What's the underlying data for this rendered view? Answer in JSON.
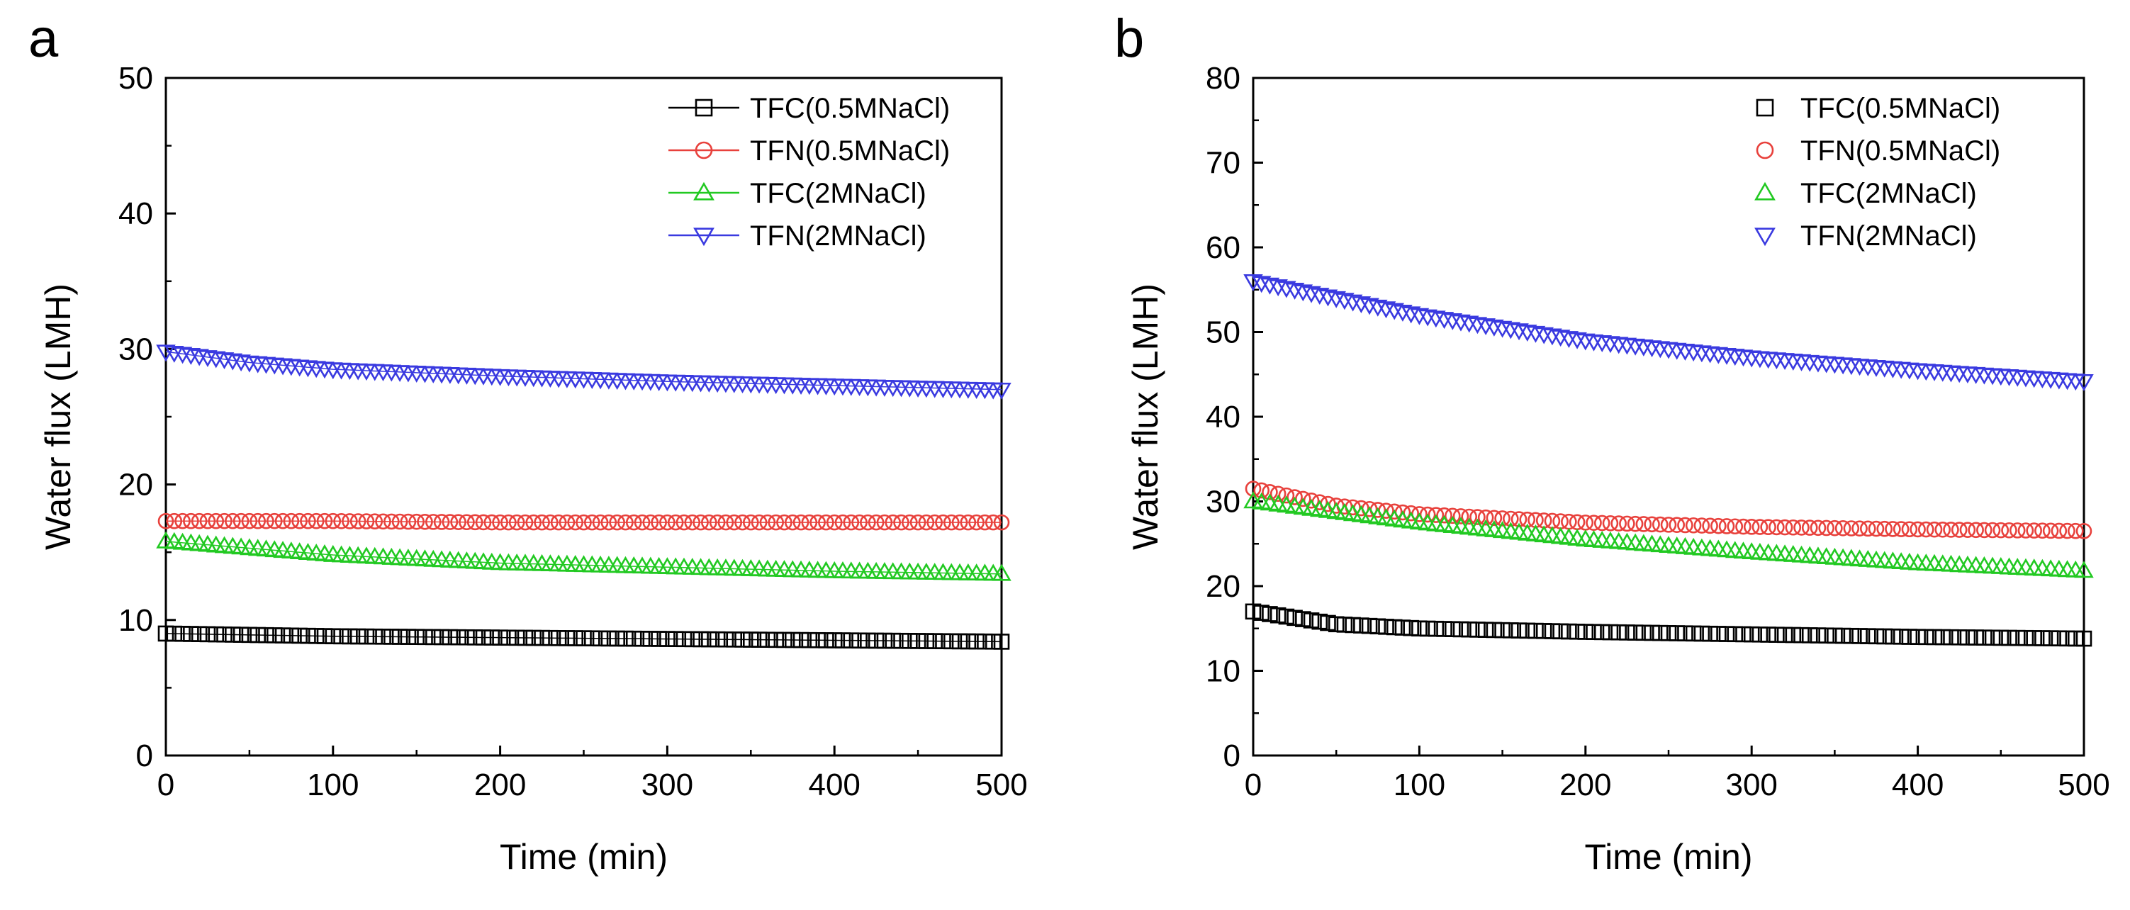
{
  "figure": {
    "panels": [
      "a",
      "b"
    ]
  },
  "chart_data": [
    {
      "panel": "a",
      "type": "scatter",
      "xlabel": "Time (min)",
      "ylabel": "Water flux (LMH)",
      "xlim": [
        0,
        500
      ],
      "ylim": [
        0,
        50
      ],
      "xticks": [
        0,
        100,
        200,
        300,
        400,
        500
      ],
      "yticks": [
        0,
        10,
        20,
        30,
        40,
        50
      ],
      "legend_position": "top-right",
      "legend_lines": true,
      "marker_step": 5,
      "series": [
        {
          "name": "TFC(0.5MNaCl)",
          "marker": "square",
          "color": "#000000",
          "x": [
            0,
            100,
            200,
            300,
            400,
            500
          ],
          "y": [
            9.0,
            8.8,
            8.7,
            8.6,
            8.5,
            8.4
          ]
        },
        {
          "name": "TFN(0.5MNaCl)",
          "marker": "circle",
          "color": "#e8413c",
          "x": [
            0,
            100,
            200,
            300,
            400,
            500
          ],
          "y": [
            17.3,
            17.3,
            17.2,
            17.2,
            17.2,
            17.2
          ]
        },
        {
          "name": "TFC(2MNaCl)",
          "marker": "triangle-up",
          "color": "#22c922",
          "x": [
            0,
            100,
            200,
            300,
            400,
            500
          ],
          "y": [
            15.8,
            14.8,
            14.2,
            13.9,
            13.6,
            13.4
          ]
        },
        {
          "name": "TFN(2MNaCl)",
          "marker": "triangle-down",
          "color": "#3a3ae0",
          "x": [
            0,
            50,
            100,
            200,
            300,
            400,
            500
          ],
          "y": [
            29.8,
            29.0,
            28.5,
            28.0,
            27.6,
            27.3,
            27.0
          ]
        }
      ]
    },
    {
      "panel": "b",
      "type": "scatter",
      "xlabel": "Time (min)",
      "ylabel": "Water flux (LMH)",
      "xlim": [
        0,
        500
      ],
      "ylim": [
        0,
        80
      ],
      "xticks": [
        0,
        100,
        200,
        300,
        400,
        500
      ],
      "yticks": [
        0,
        10,
        20,
        30,
        40,
        50,
        60,
        70,
        80
      ],
      "legend_position": "top-right",
      "legend_lines": false,
      "marker_step": 5,
      "series": [
        {
          "name": "TFC(0.5MNaCl)",
          "marker": "square",
          "color": "#000000",
          "x": [
            0,
            50,
            100,
            200,
            300,
            400,
            500
          ],
          "y": [
            17.0,
            15.5,
            15.0,
            14.6,
            14.3,
            14.0,
            13.8
          ]
        },
        {
          "name": "TFN(0.5MNaCl)",
          "marker": "circle",
          "color": "#e8413c",
          "x": [
            0,
            50,
            100,
            200,
            300,
            400,
            500
          ],
          "y": [
            31.5,
            29.5,
            28.5,
            27.5,
            27.0,
            26.7,
            26.5
          ]
        },
        {
          "name": "TFC(2MNaCl)",
          "marker": "triangle-up",
          "color": "#22c922",
          "x": [
            0,
            100,
            200,
            300,
            400,
            500
          ],
          "y": [
            30.0,
            27.5,
            25.5,
            24.0,
            22.7,
            21.8
          ]
        },
        {
          "name": "TFN(2MNaCl)",
          "marker": "triangle-down",
          "color": "#3a3ae0",
          "x": [
            0,
            100,
            200,
            300,
            400,
            500
          ],
          "y": [
            56.0,
            52.0,
            49.0,
            47.0,
            45.5,
            44.2
          ]
        }
      ]
    }
  ]
}
